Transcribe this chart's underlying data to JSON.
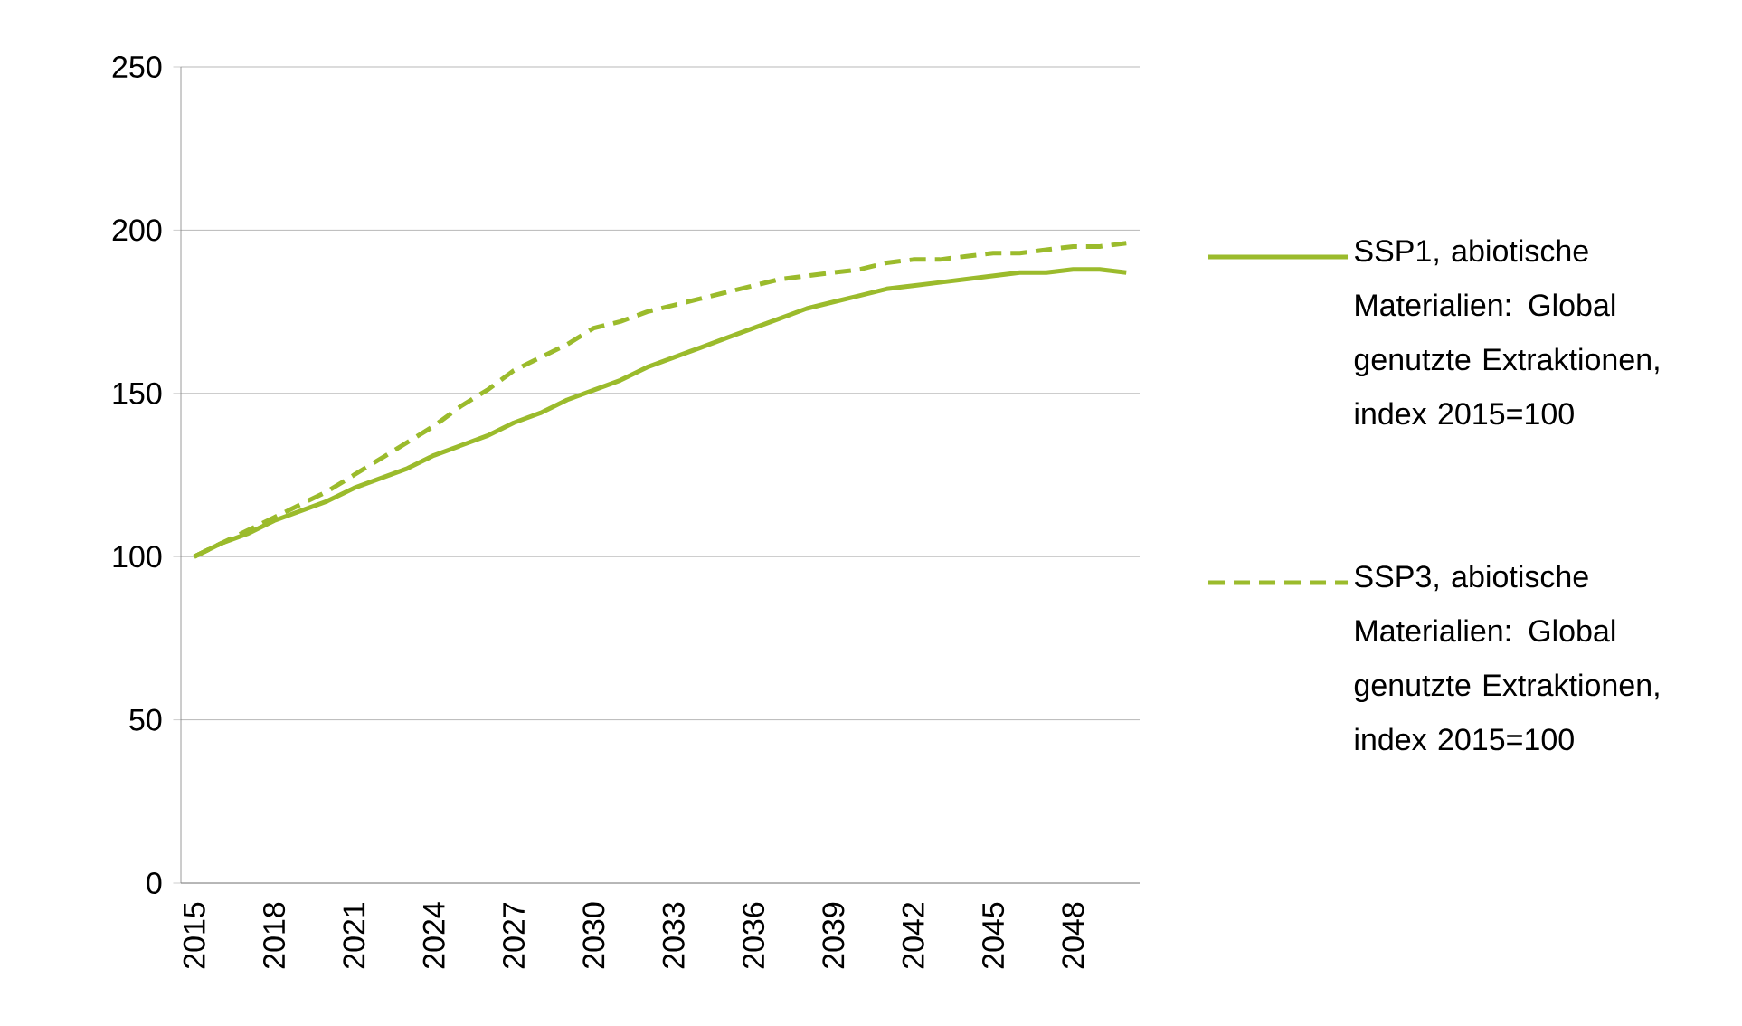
{
  "chart_data": {
    "type": "line",
    "categories": [
      "2015",
      null,
      null,
      "2018",
      null,
      null,
      "2021",
      null,
      null,
      "2024",
      null,
      null,
      "2027",
      null,
      null,
      "2030",
      null,
      null,
      "2033",
      null,
      null,
      "2036",
      null,
      null,
      "2039",
      null,
      null,
      "2042",
      null,
      null,
      "2045",
      null,
      null,
      "2048",
      null,
      null
    ],
    "series": [
      {
        "name": "SSP1, abiotische Materialien: Global genutzte Extraktionen, index 2015=100",
        "color": "#9bbb2c",
        "line_style": "solid",
        "values": [
          100,
          104,
          107,
          111,
          114,
          117,
          121,
          124,
          127,
          131,
          134,
          137,
          141,
          144,
          148,
          151,
          154,
          158,
          161,
          164,
          167,
          170,
          173,
          176,
          178,
          180,
          182,
          183,
          184,
          185,
          186,
          187,
          187,
          188,
          188,
          187
        ]
      },
      {
        "name": "SSP3, abiotische Materialien: Global genutzte Extraktionen, index 2015=100",
        "color": "#9bbb2c",
        "line_style": "dashed",
        "values": [
          100,
          104,
          108,
          112,
          116,
          120,
          125,
          130,
          135,
          140,
          146,
          151,
          157,
          161,
          165,
          170,
          172,
          175,
          177,
          179,
          181,
          183,
          185,
          186,
          187,
          188,
          190,
          191,
          191,
          192,
          193,
          193,
          194,
          195,
          195,
          196
        ]
      }
    ],
    "ylim": [
      0,
      250
    ],
    "yticks": [
      0,
      50,
      100,
      150,
      200,
      250
    ],
    "grid": "y",
    "legend": "right",
    "marker": "none"
  }
}
